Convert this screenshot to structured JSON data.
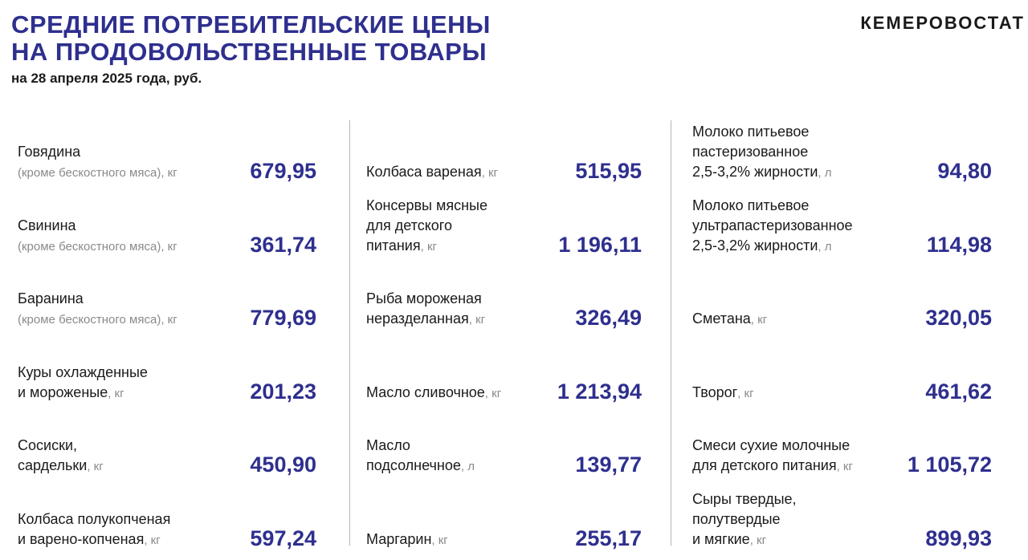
{
  "header": {
    "title_line1": "СРЕДНИЕ ПОТРЕБИТЕЛЬСКИЕ ЦЕНЫ",
    "title_line2": "НА ПРОДОВОЛЬСТВЕННЫЕ ТОВАРЫ",
    "subtitle": "на 28 апреля 2025 года, руб.",
    "brand": "КЕМЕРОВОСТАТ"
  },
  "colors": {
    "accent": "#2e2f8e",
    "muted": "#8a8a8a",
    "divider": "#b5b5b5"
  },
  "columns": [
    {
      "items": [
        {
          "lines": [
            "Говядина"
          ],
          "last_line": "(кроме бескостного мяса)",
          "last_line_muted": true,
          "unit": ", кг",
          "value": "679,95"
        },
        {
          "lines": [
            "Свинина"
          ],
          "last_line": "(кроме бескостного мяса)",
          "last_line_muted": true,
          "unit": ", кг",
          "value": "361,74"
        },
        {
          "lines": [
            "Баранина"
          ],
          "last_line": "(кроме бескостного мяса)",
          "last_line_muted": true,
          "unit": ", кг",
          "value": "779,69"
        },
        {
          "lines": [
            "Куры охлажденные"
          ],
          "last_line": "и мороженые",
          "last_line_muted": false,
          "unit": ", кг",
          "value": "201,23"
        },
        {
          "lines": [
            "Сосиски,"
          ],
          "last_line": "сардельки",
          "last_line_muted": false,
          "unit": ", кг",
          "value": "450,90"
        },
        {
          "lines": [
            "Колбаса полукопченая"
          ],
          "last_line": "и варено-копченая",
          "last_line_muted": false,
          "unit": ", кг",
          "value": "597,24"
        }
      ]
    },
    {
      "items": [
        {
          "lines": [],
          "last_line": "Колбаса вареная",
          "last_line_muted": false,
          "unit": ", кг",
          "value": "515,95"
        },
        {
          "lines": [
            "Консервы мясные",
            "для детского"
          ],
          "last_line": "питания",
          "last_line_muted": false,
          "unit": ", кг",
          "value": "1 196,11"
        },
        {
          "lines": [
            "Рыба мороженая"
          ],
          "last_line": "неразделанная",
          "last_line_muted": false,
          "unit": ", кг",
          "value": "326,49"
        },
        {
          "lines": [],
          "last_line": "Масло сливочное",
          "last_line_muted": false,
          "unit": ", кг",
          "value": "1 213,94"
        },
        {
          "lines": [
            "Масло"
          ],
          "last_line": "подсолнечное",
          "last_line_muted": false,
          "unit": ", л",
          "value": "139,77"
        },
        {
          "lines": [],
          "last_line": "Маргарин",
          "last_line_muted": false,
          "unit": ", кг",
          "value": "255,17"
        }
      ]
    },
    {
      "items": [
        {
          "lines": [
            "Молоко питьевое",
            "пастеризованное"
          ],
          "last_line": "2,5-3,2% жирности",
          "last_line_muted": false,
          "unit": ", л",
          "value": "94,80"
        },
        {
          "lines": [
            "Молоко питьевое",
            "ультрапастеризованное"
          ],
          "last_line": "2,5-3,2% жирности",
          "last_line_muted": false,
          "unit": ", л",
          "value": "114,98"
        },
        {
          "lines": [],
          "last_line": "Сметана",
          "last_line_muted": false,
          "unit": ", кг",
          "value": "320,05"
        },
        {
          "lines": [],
          "last_line": "Творог",
          "last_line_muted": false,
          "unit": ", кг",
          "value": "461,62"
        },
        {
          "lines": [
            "Смеси сухие молочные"
          ],
          "last_line": "для детского питания",
          "last_line_muted": false,
          "unit": ", кг",
          "value": "1 105,72"
        },
        {
          "lines": [
            "Сыры твердые,",
            "полутвердые"
          ],
          "last_line": "и мягкие",
          "last_line_muted": false,
          "unit": ", кг",
          "value": "899,93"
        }
      ]
    }
  ]
}
